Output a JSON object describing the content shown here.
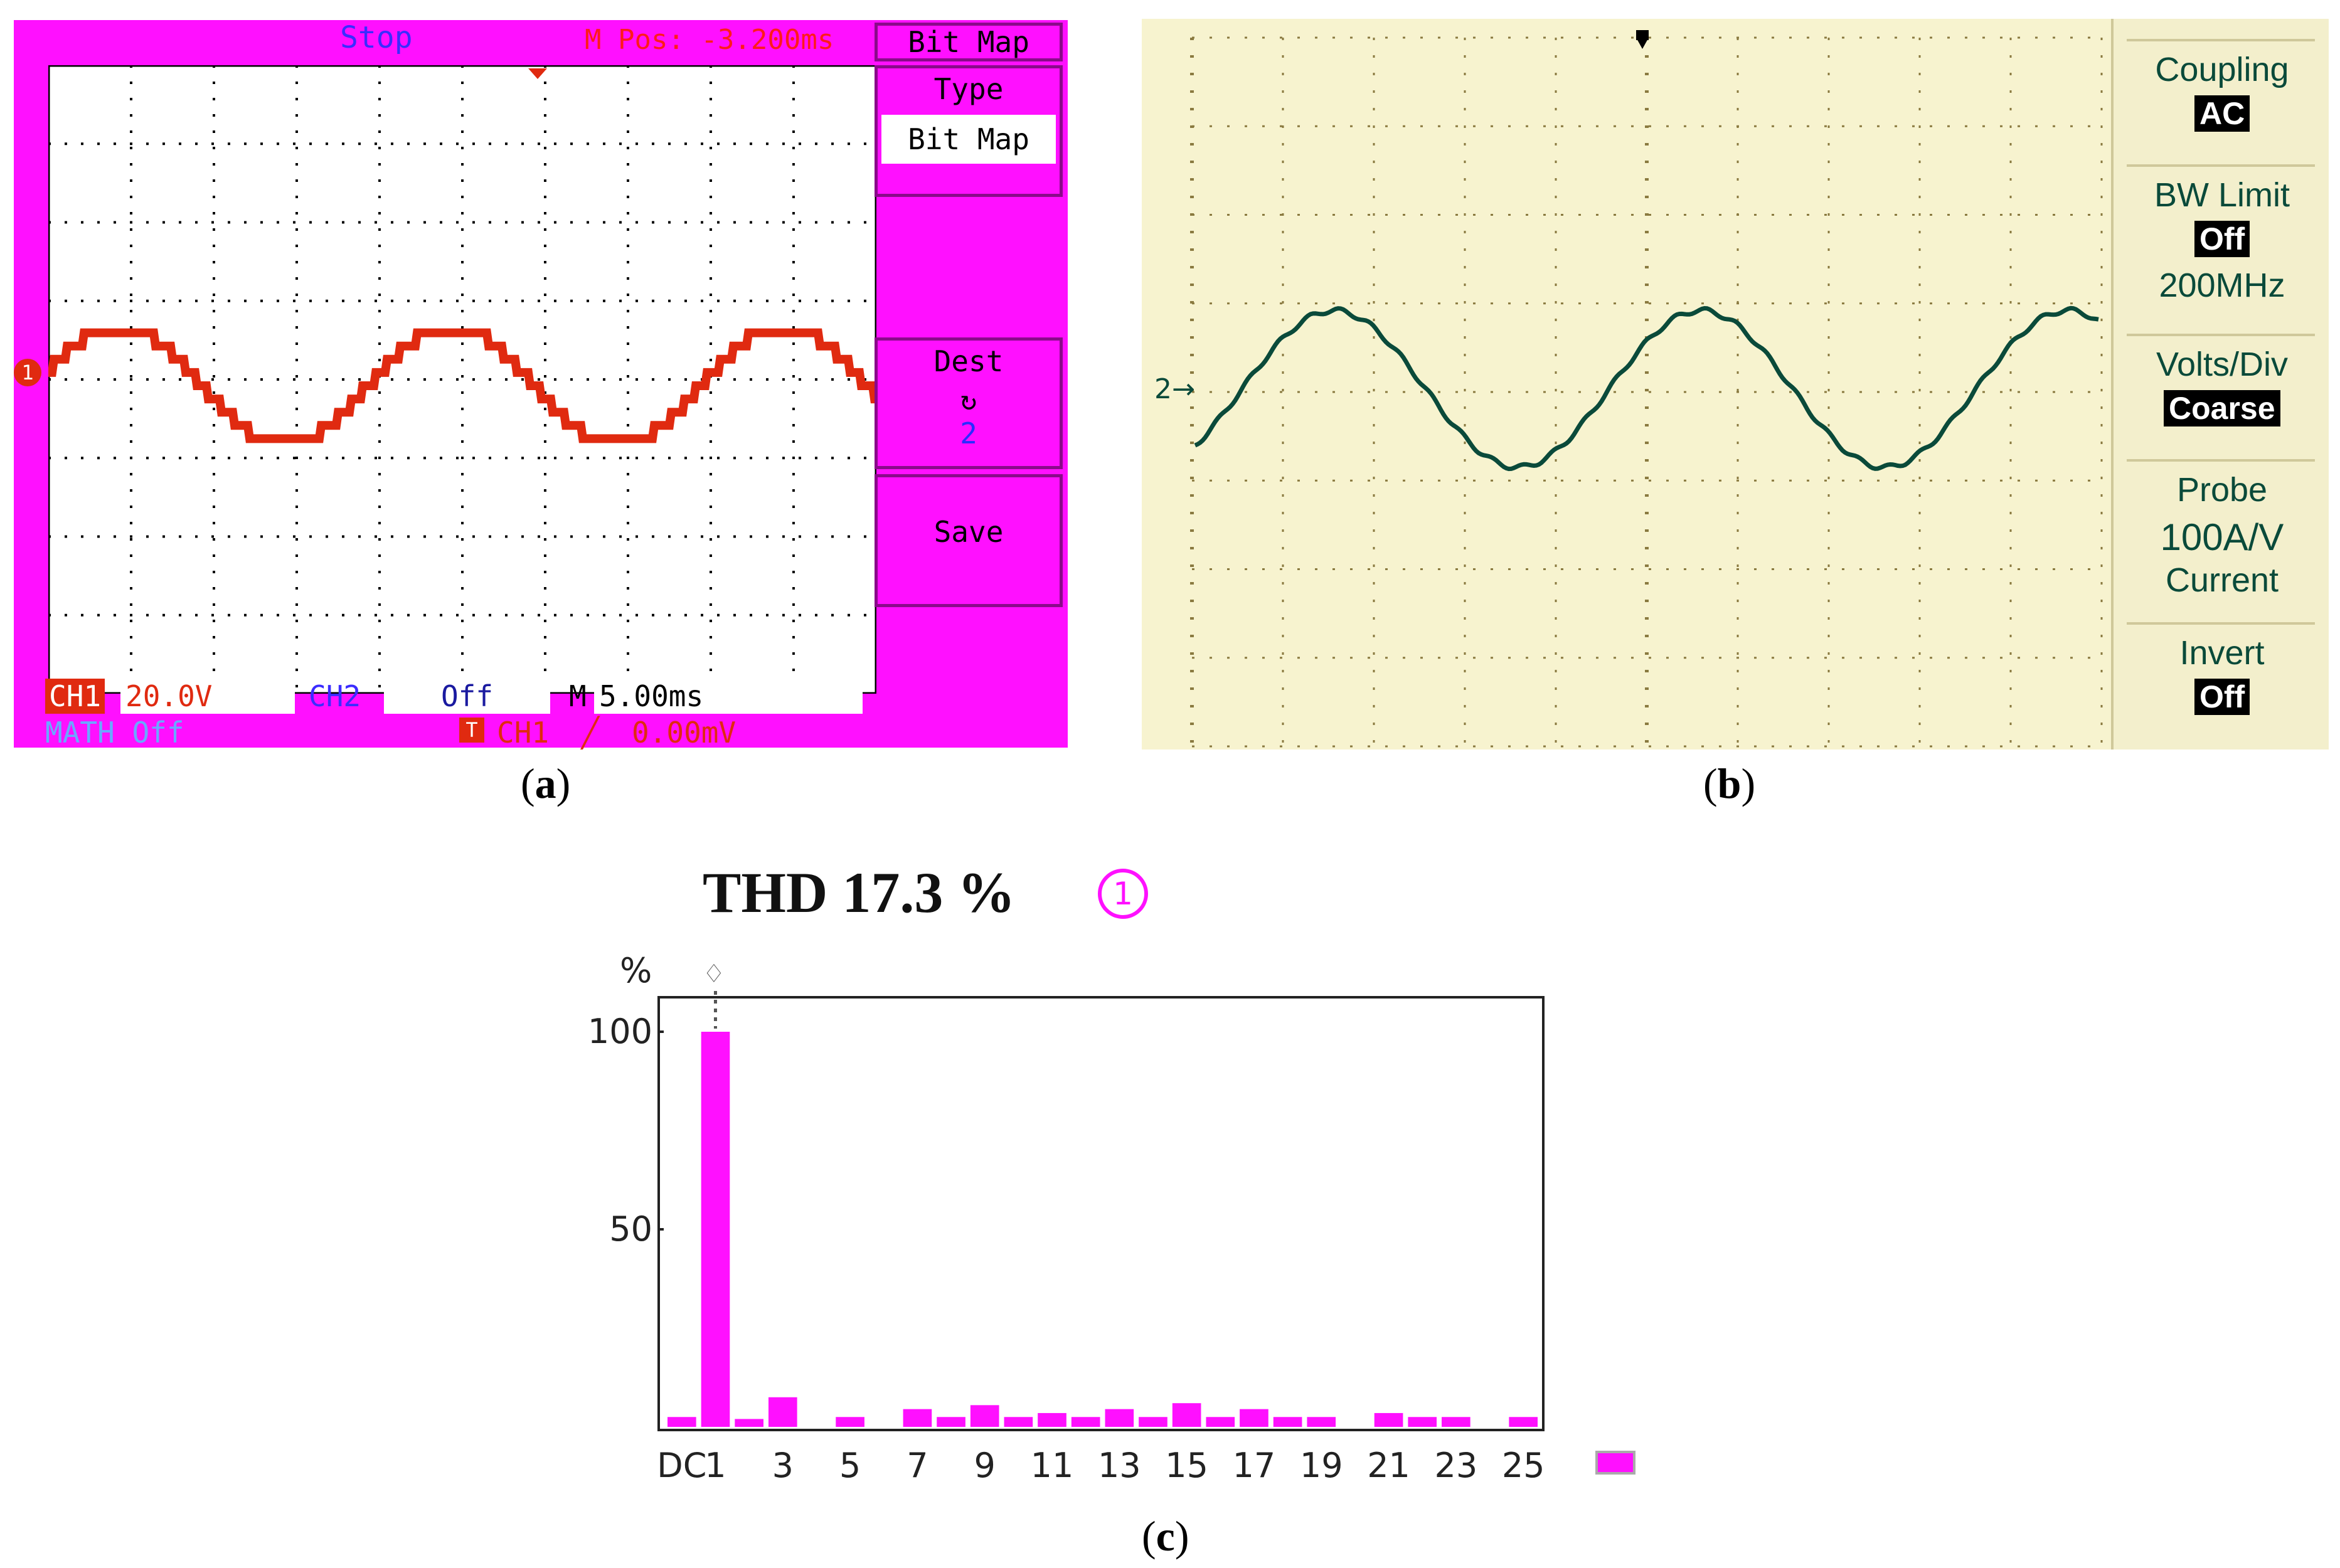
{
  "panel_a": {
    "caption_letter": "a",
    "status": "Stop",
    "mpos": "M Pos: -3.200ms",
    "menu_title": "Bit  Map",
    "type_label": "Type",
    "type_value": "Bit  Map",
    "dest_label": "Dest",
    "dest_icon": "refresh-icon",
    "dest_value": "2",
    "save_label": "Save",
    "ch1_label": "CH1",
    "ch1_scale": "20.0V",
    "ch2_label": "CH2",
    "ch2_value": "Off",
    "time_label": "M",
    "time_value": "5.00ms",
    "math": "MATH Off",
    "trig_marker": "T",
    "trig_source": "CH1",
    "trig_level": "0.00mV",
    "ch_marker": "1",
    "colors": {
      "bg": "#ff10ff",
      "trace": "#e02a10",
      "grid": "#000000"
    }
  },
  "panel_b": {
    "caption_letter": "b",
    "channel_marker": "2",
    "menu": [
      {
        "label": "Coupling",
        "value": "AC"
      },
      {
        "label": "BW Limit",
        "value": "Off",
        "extra": "200MHz"
      },
      {
        "label": "Volts/Div",
        "value": "Coarse"
      },
      {
        "label": "Probe",
        "value": "100A/V",
        "extra": "Current"
      },
      {
        "label": "Invert",
        "value": "Off"
      }
    ],
    "colors": {
      "bg": "#f7f3cf",
      "trace": "#0a4a3a",
      "grid": "#8a7a40"
    }
  },
  "panel_c": {
    "caption_letter": "c",
    "thd_text": "THD 17.3 %",
    "channel_badge": "1",
    "colors": {
      "bar": "#ff10ff",
      "badge": "#ff10ff"
    }
  },
  "chart_data": [
    {
      "type": "line",
      "title": "",
      "ylabel": "CH1",
      "series": [
        {
          "name": "CH1",
          "shape": "stepped multilevel sine",
          "period_ms": 20,
          "cycles_shown": 2.5
        }
      ],
      "grid": true
    },
    {
      "type": "line",
      "title": "",
      "series": [
        {
          "name": "2",
          "shape": "sinusoid",
          "cycles_shown": 2.2
        }
      ],
      "grid": true
    },
    {
      "type": "bar",
      "title": "THD 17.3 %",
      "ylabel": "%",
      "ylim": [
        0,
        100
      ],
      "yticks": [
        50,
        100
      ],
      "categories": [
        "DC",
        "1",
        "2",
        "3",
        "4",
        "5",
        "6",
        "7",
        "8",
        "9",
        "10",
        "11",
        "12",
        "13",
        "14",
        "15",
        "16",
        "17",
        "18",
        "19",
        "20",
        "21",
        "22",
        "23",
        "24",
        "25"
      ],
      "xtick_labels": [
        "DC",
        "1",
        "3",
        "5",
        "7",
        "9",
        "11",
        "13",
        "15",
        "17",
        "19",
        "21",
        "23",
        "25"
      ],
      "values": [
        2.5,
        100,
        2,
        7.5,
        0,
        2.5,
        0,
        4.5,
        2.5,
        5.5,
        2.5,
        3.5,
        2.5,
        4.5,
        2.5,
        6,
        2.5,
        4.5,
        2.5,
        2.5,
        0,
        3.5,
        2.5,
        2.5,
        0,
        2.5
      ],
      "grid": false
    }
  ]
}
